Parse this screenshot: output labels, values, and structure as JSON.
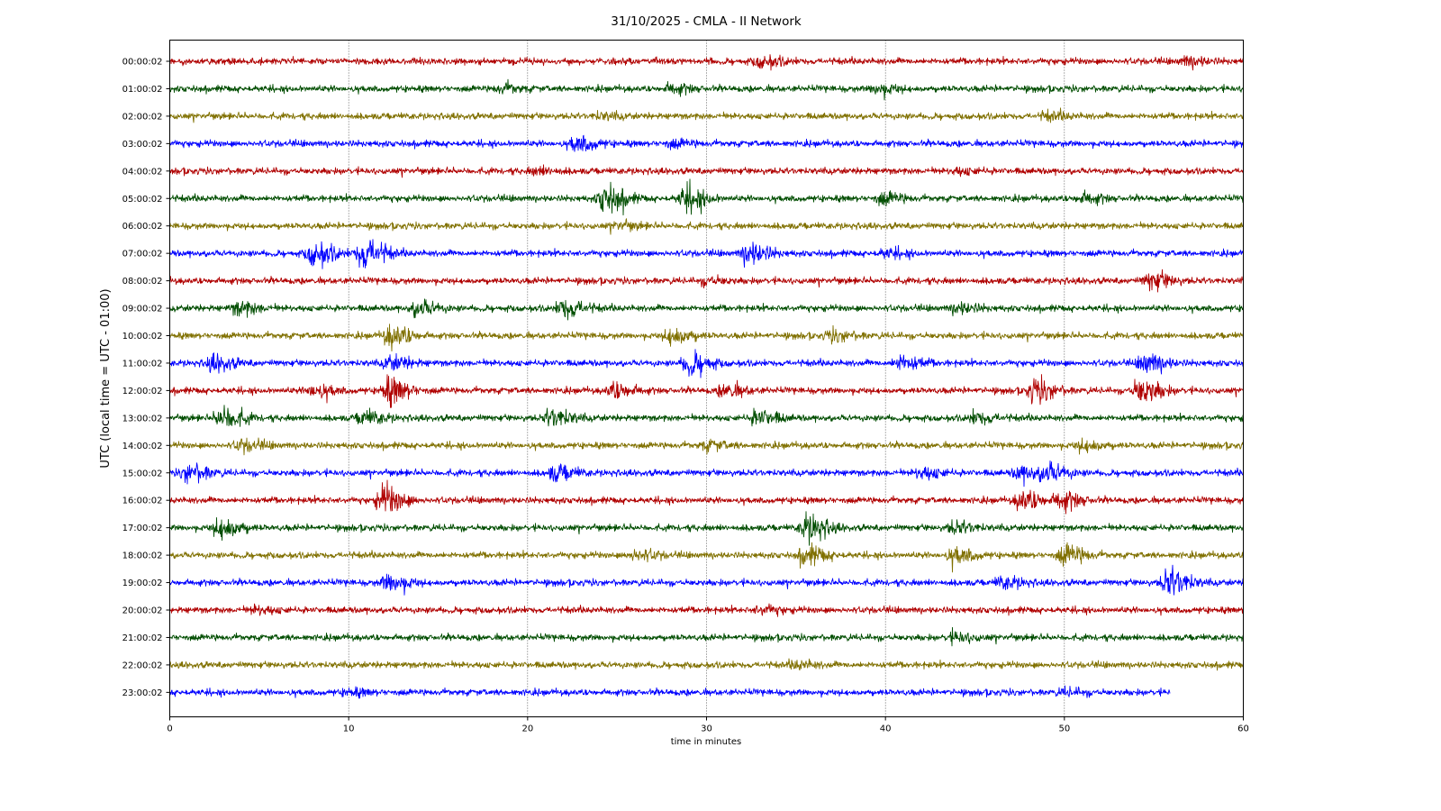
{
  "chart_data": {
    "type": "line",
    "title": "31/10/2025 - CMLA - II Network",
    "xlabel": "time in minutes",
    "ylabel": "UTC (local time = UTC - 01:00)",
    "xlim": [
      0,
      60
    ],
    "x_ticks": [
      "0",
      "10",
      "20",
      "30",
      "40",
      "50",
      "60"
    ],
    "grid": "vertical dotted lines at x ticks",
    "colors": [
      "#b00000",
      "#004d00",
      "#807000",
      "#0000ff"
    ],
    "series": [
      {
        "label": "00:00:02",
        "end_minute": 60,
        "events": [
          [
            33,
            1.0
          ],
          [
            56.8,
            0.8
          ]
        ]
      },
      {
        "label": "01:00:02",
        "end_minute": 60,
        "events": [
          [
            18.5,
            0.7
          ],
          [
            28,
            0.8
          ],
          [
            39.5,
            0.9
          ]
        ]
      },
      {
        "label": "02:00:02",
        "end_minute": 60,
        "events": [
          [
            24,
            0.5
          ],
          [
            49,
            0.6
          ]
        ]
      },
      {
        "label": "03:00:02",
        "end_minute": 60,
        "events": [
          [
            22.7,
            1.4
          ],
          [
            28,
            0.6
          ]
        ]
      },
      {
        "label": "04:00:02",
        "end_minute": 60,
        "events": [
          [
            20.5,
            0.6
          ],
          [
            44,
            0.5
          ]
        ]
      },
      {
        "label": "05:00:02",
        "end_minute": 60,
        "events": [
          [
            24.3,
            2.6
          ],
          [
            28.8,
            2.2
          ],
          [
            39.8,
            1.0
          ],
          [
            51,
            0.9
          ]
        ]
      },
      {
        "label": "06:00:02",
        "end_minute": 60,
        "events": [
          [
            25,
            0.6
          ]
        ]
      },
      {
        "label": "07:00:02",
        "end_minute": 60,
        "events": [
          [
            8,
            2.2
          ],
          [
            10.8,
            3.0
          ],
          [
            32.3,
            2.0
          ],
          [
            40,
            0.7
          ]
        ]
      },
      {
        "label": "08:00:02",
        "end_minute": 60,
        "events": [
          [
            30,
            0.6
          ],
          [
            54.8,
            1.6
          ]
        ]
      },
      {
        "label": "09:00:02",
        "end_minute": 60,
        "events": [
          [
            3.8,
            1.2
          ],
          [
            13.8,
            1.4
          ],
          [
            22,
            1.8
          ],
          [
            44,
            0.9
          ]
        ]
      },
      {
        "label": "10:00:02",
        "end_minute": 60,
        "events": [
          [
            12.3,
            2.0
          ],
          [
            28,
            1.6
          ],
          [
            37,
            0.9
          ]
        ]
      },
      {
        "label": "11:00:02",
        "end_minute": 60,
        "events": [
          [
            2.4,
            1.4
          ],
          [
            12.3,
            1.2
          ],
          [
            29,
            2.0
          ],
          [
            40.8,
            1.4
          ],
          [
            54.5,
            1.8
          ]
        ]
      },
      {
        "label": "12:00:02",
        "end_minute": 60,
        "events": [
          [
            8,
            1.2
          ],
          [
            12.2,
            2.4
          ],
          [
            24.8,
            1.4
          ],
          [
            31,
            1.2
          ],
          [
            48.3,
            2.0
          ],
          [
            54.2,
            2.4
          ]
        ]
      },
      {
        "label": "13:00:02",
        "end_minute": 60,
        "events": [
          [
            2.9,
            2.2
          ],
          [
            10.8,
            1.2
          ],
          [
            21.3,
            1.6
          ],
          [
            32.8,
            1.4
          ],
          [
            45,
            1.0
          ]
        ]
      },
      {
        "label": "14:00:02",
        "end_minute": 60,
        "events": [
          [
            4,
            0.9
          ],
          [
            30,
            0.8
          ],
          [
            51,
            1.0
          ]
        ]
      },
      {
        "label": "15:00:02",
        "end_minute": 60,
        "events": [
          [
            1,
            1.6
          ],
          [
            21.5,
            1.4
          ],
          [
            42,
            1.0
          ],
          [
            47.5,
            1.3
          ],
          [
            49,
            1.6
          ]
        ]
      },
      {
        "label": "16:00:02",
        "end_minute": 60,
        "events": [
          [
            11.9,
            2.6
          ],
          [
            47.6,
            1.8
          ],
          [
            49.8,
            1.6
          ]
        ]
      },
      {
        "label": "17:00:02",
        "end_minute": 60,
        "events": [
          [
            2.8,
            2.0
          ],
          [
            35.6,
            2.4
          ],
          [
            43.8,
            1.0
          ]
        ]
      },
      {
        "label": "18:00:02",
        "end_minute": 60,
        "events": [
          [
            26,
            1.0
          ],
          [
            35.5,
            1.6
          ],
          [
            43.8,
            1.4
          ],
          [
            50,
            1.8
          ]
        ]
      },
      {
        "label": "19:00:02",
        "end_minute": 60,
        "events": [
          [
            12.2,
            1.6
          ],
          [
            46.5,
            1.0
          ],
          [
            55.8,
            2.6
          ]
        ]
      },
      {
        "label": "20:00:02",
        "end_minute": 60,
        "events": [
          [
            4.8,
            0.6
          ],
          [
            33,
            0.7
          ]
        ]
      },
      {
        "label": "21:00:02",
        "end_minute": 60,
        "events": [
          [
            43.8,
            0.8
          ]
        ]
      },
      {
        "label": "22:00:02",
        "end_minute": 60,
        "events": [
          [
            35,
            0.6
          ]
        ]
      },
      {
        "label": "23:00:02",
        "end_minute": 55.9,
        "events": [
          [
            10,
            0.5
          ],
          [
            50,
            0.5
          ]
        ]
      }
    ]
  }
}
